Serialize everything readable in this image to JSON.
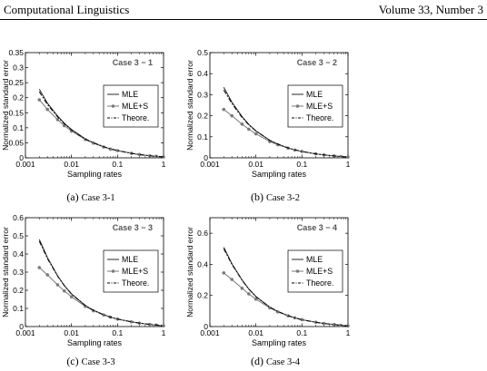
{
  "header": {
    "left": "Computational Linguistics",
    "right": "Volume 33, Number 3"
  },
  "chart_data": [
    {
      "type": "line",
      "label": "(a)",
      "caption": "Case 3-1",
      "title": "Case 3 − 1",
      "xlabel": "Sampling rates",
      "ylabel": "Normalized standard error",
      "xscale": "log",
      "xlim": [
        0.001,
        1
      ],
      "ylim": [
        0,
        0.35
      ],
      "xticks": [
        0.001,
        0.01,
        0.1,
        1
      ],
      "xtick_labels": [
        "0.001",
        "0.01",
        "0.1",
        "1"
      ],
      "yticks": [
        0,
        0.05,
        0.1,
        0.15,
        0.2,
        0.25,
        0.3,
        0.35
      ],
      "ytick_labels": [
        "0",
        "0.05",
        "0.1",
        "0.15",
        "0.2",
        "0.25",
        "0.3",
        "0.35"
      ],
      "x": [
        0.002,
        0.003,
        0.005,
        0.007,
        0.01,
        0.02,
        0.03,
        0.05,
        0.07,
        0.1,
        0.2,
        0.3,
        0.5,
        0.7,
        1.0
      ],
      "series": [
        {
          "name": "MLE",
          "style": "solid",
          "values": [
            0.228,
            0.182,
            0.139,
            0.115,
            0.094,
            0.063,
            0.05,
            0.037,
            0.03,
            0.024,
            0.015,
            0.011,
            0.007,
            0.005,
            0.003
          ]
        },
        {
          "name": "MLE+S",
          "style": "marker",
          "values": [
            0.193,
            0.161,
            0.127,
            0.107,
            0.089,
            0.061,
            0.049,
            0.036,
            0.029,
            0.024,
            0.015,
            0.011,
            0.007,
            0.005,
            0.003
          ]
        },
        {
          "name": "Theore.",
          "style": "dashdot",
          "values": [
            0.22,
            0.177,
            0.136,
            0.113,
            0.093,
            0.062,
            0.05,
            0.037,
            0.03,
            0.024,
            0.015,
            0.011,
            0.007,
            0.005,
            0.003
          ]
        }
      ],
      "legend_position": "right"
    },
    {
      "type": "line",
      "label": "(b)",
      "caption": "Case 3-2",
      "title": "Case 3 − 2",
      "xlabel": "Sampling rates",
      "ylabel": "Normalized standard error",
      "xscale": "log",
      "xlim": [
        0.001,
        1
      ],
      "ylim": [
        0,
        0.5
      ],
      "xticks": [
        0.001,
        0.01,
        0.1,
        1
      ],
      "xtick_labels": [
        "0.001",
        "0.01",
        "0.1",
        "1"
      ],
      "yticks": [
        0,
        0.1,
        0.2,
        0.3,
        0.4,
        0.5
      ],
      "ytick_labels": [
        "0",
        "0.1",
        "0.2",
        "0.3",
        "0.4",
        "0.5"
      ],
      "x": [
        0.002,
        0.003,
        0.005,
        0.007,
        0.01,
        0.02,
        0.03,
        0.05,
        0.07,
        0.1,
        0.2,
        0.3,
        0.5,
        0.7,
        1.0
      ],
      "series": [
        {
          "name": "MLE",
          "style": "solid",
          "values": [
            0.335,
            0.265,
            0.196,
            0.159,
            0.128,
            0.083,
            0.065,
            0.047,
            0.038,
            0.03,
            0.019,
            0.014,
            0.009,
            0.006,
            0.004
          ]
        },
        {
          "name": "MLE+S",
          "style": "marker",
          "values": [
            0.23,
            0.2,
            0.16,
            0.136,
            0.114,
            0.077,
            0.062,
            0.046,
            0.037,
            0.03,
            0.019,
            0.014,
            0.009,
            0.006,
            0.004
          ]
        },
        {
          "name": "Theore.",
          "style": "dashdot",
          "values": [
            0.322,
            0.258,
            0.192,
            0.157,
            0.127,
            0.083,
            0.065,
            0.047,
            0.038,
            0.03,
            0.019,
            0.014,
            0.009,
            0.006,
            0.004
          ]
        }
      ],
      "legend_position": "right"
    },
    {
      "type": "line",
      "label": "(c)",
      "caption": "Case 3-3",
      "title": "Case 3 − 3",
      "xlabel": "Sampling rates",
      "ylabel": "Normalized standard error",
      "xscale": "log",
      "xlim": [
        0.001,
        1
      ],
      "ylim": [
        0,
        0.6
      ],
      "xticks": [
        0.001,
        0.01,
        0.1,
        1
      ],
      "xtick_labels": [
        "0.001",
        "0.01",
        "0.1",
        "1"
      ],
      "yticks": [
        0,
        0.1,
        0.2,
        0.3,
        0.4,
        0.5,
        0.6
      ],
      "ytick_labels": [
        "0",
        "0.1",
        "0.2",
        "0.3",
        "0.4",
        "0.5",
        "0.6"
      ],
      "x": [
        0.002,
        0.003,
        0.005,
        0.007,
        0.01,
        0.02,
        0.03,
        0.05,
        0.07,
        0.1,
        0.2,
        0.3,
        0.5,
        0.7,
        1.0
      ],
      "series": [
        {
          "name": "MLE",
          "style": "solid",
          "values": [
            0.48,
            0.38,
            0.28,
            0.226,
            0.18,
            0.116,
            0.09,
            0.065,
            0.052,
            0.041,
            0.026,
            0.019,
            0.012,
            0.008,
            0.004
          ]
        },
        {
          "name": "MLE+S",
          "style": "marker",
          "values": [
            0.325,
            0.285,
            0.23,
            0.196,
            0.164,
            0.111,
            0.087,
            0.064,
            0.052,
            0.041,
            0.026,
            0.019,
            0.012,
            0.008,
            0.004
          ]
        },
        {
          "name": "Theore.",
          "style": "dashdot",
          "values": [
            0.47,
            0.375,
            0.278,
            0.225,
            0.179,
            0.116,
            0.09,
            0.065,
            0.052,
            0.041,
            0.026,
            0.019,
            0.012,
            0.008,
            0.004
          ]
        }
      ],
      "legend_position": "right"
    },
    {
      "type": "line",
      "label": "(d)",
      "caption": "Case 3-4",
      "title": "Case 3 − 4",
      "xlabel": "Sampling rates",
      "ylabel": "Normalized standard error",
      "xscale": "log",
      "xlim": [
        0.001,
        1
      ],
      "ylim": [
        0,
        0.7
      ],
      "xticks": [
        0.001,
        0.01,
        0.1,
        1
      ],
      "xtick_labels": [
        "0.001",
        "0.01",
        "0.1",
        "1"
      ],
      "yticks": [
        0,
        0.2,
        0.4,
        0.6
      ],
      "ytick_labels": [
        "0",
        "0.2",
        "0.4",
        "0.6"
      ],
      "x": [
        0.002,
        0.003,
        0.005,
        0.007,
        0.01,
        0.02,
        0.03,
        0.05,
        0.07,
        0.1,
        0.2,
        0.3,
        0.5,
        0.7,
        1.0
      ],
      "series": [
        {
          "name": "MLE",
          "style": "solid",
          "values": [
            0.51,
            0.405,
            0.3,
            0.242,
            0.193,
            0.125,
            0.097,
            0.07,
            0.056,
            0.044,
            0.028,
            0.02,
            0.013,
            0.008,
            0.004
          ]
        },
        {
          "name": "MLE+S",
          "style": "marker",
          "values": [
            0.345,
            0.303,
            0.246,
            0.21,
            0.176,
            0.12,
            0.094,
            0.069,
            0.056,
            0.044,
            0.028,
            0.02,
            0.013,
            0.008,
            0.004
          ]
        },
        {
          "name": "Theore.",
          "style": "dashdot",
          "values": [
            0.5,
            0.4,
            0.298,
            0.241,
            0.192,
            0.125,
            0.097,
            0.07,
            0.056,
            0.044,
            0.028,
            0.02,
            0.013,
            0.008,
            0.004
          ]
        }
      ],
      "legend_position": "right"
    }
  ]
}
